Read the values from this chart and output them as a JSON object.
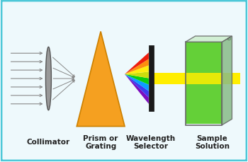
{
  "bg_color": "#eef9fc",
  "border_color": "#4dc8d8",
  "labels": [
    "Collimator",
    "Prism or\nGrating",
    "Wavelength\nSelector",
    "Sample\nSolution"
  ],
  "label_fontsize": 7.5,
  "label_fontweight": "bold",
  "prism_color": "#f5a020",
  "prism_outline": "#cc8000",
  "selector_color": "#1a1a1a",
  "cuvette_fill": "#55cc22",
  "arrow_color": "#888888",
  "yellow_beam_color": "#FFEE00",
  "lens_color": "#999999",
  "lens_edge": "#555555"
}
